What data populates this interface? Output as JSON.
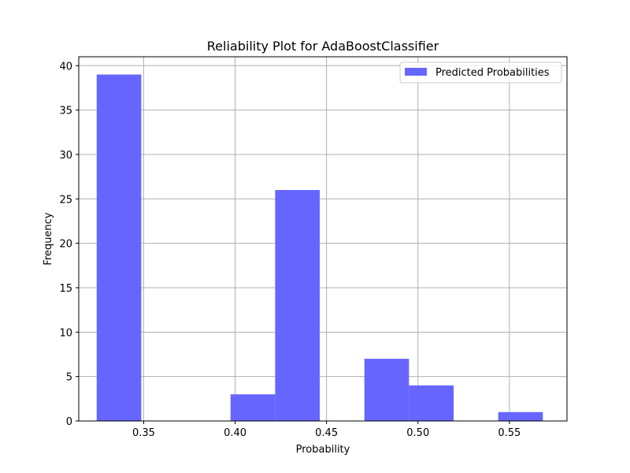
{
  "chart_data": {
    "type": "bar",
    "title": "Reliability Plot for AdaBoostClassifier",
    "xlabel": "Probability",
    "ylabel": "Frequency",
    "xlim": [
      0.3145,
      0.5815
    ],
    "ylim": [
      0,
      41
    ],
    "xticks": [
      0.35,
      0.4,
      0.45,
      0.5,
      0.55
    ],
    "xtick_labels": [
      "0.35",
      "0.40",
      "0.45",
      "0.50",
      "0.55"
    ],
    "yticks": [
      0,
      5,
      10,
      15,
      20,
      25,
      30,
      35,
      40
    ],
    "ytick_labels": [
      "0",
      "5",
      "10",
      "15",
      "20",
      "25",
      "30",
      "35",
      "40"
    ],
    "grid": true,
    "legend_position": "top-right",
    "series": [
      {
        "name": "Predicted Probabilities",
        "color": "#6666ff",
        "bins": [
          {
            "x0": 0.3243,
            "x1": 0.3487,
            "count": 39
          },
          {
            "x0": 0.3487,
            "x1": 0.3731,
            "count": 0
          },
          {
            "x0": 0.3731,
            "x1": 0.3975,
            "count": 0
          },
          {
            "x0": 0.3975,
            "x1": 0.4219,
            "count": 3
          },
          {
            "x0": 0.4219,
            "x1": 0.4463,
            "count": 26
          },
          {
            "x0": 0.4463,
            "x1": 0.4707,
            "count": 0
          },
          {
            "x0": 0.4707,
            "x1": 0.4951,
            "count": 7
          },
          {
            "x0": 0.4951,
            "x1": 0.5195,
            "count": 4
          },
          {
            "x0": 0.5195,
            "x1": 0.5439,
            "count": 0
          },
          {
            "x0": 0.5439,
            "x1": 0.5683,
            "count": 1
          }
        ]
      }
    ]
  }
}
